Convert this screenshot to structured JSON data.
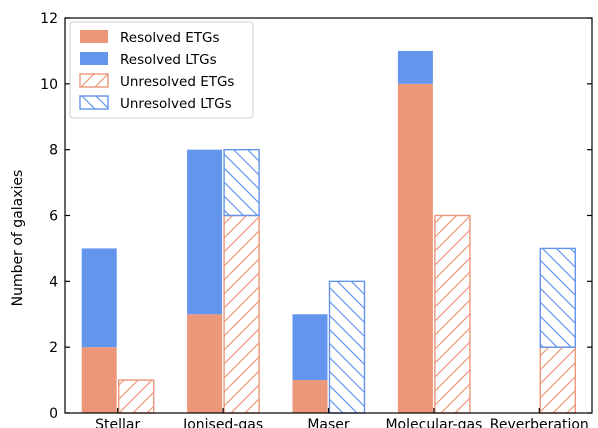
{
  "chart_data": {
    "type": "bar",
    "title": "",
    "xlabel": "",
    "ylabel": "Number of galaxies",
    "ylim": [
      0,
      12
    ],
    "yticks": [
      0,
      2,
      4,
      6,
      8,
      10,
      12
    ],
    "grid": false,
    "legend_position": "top-left",
    "categories": [
      "Stellar",
      "Ionised-gas",
      "Maser",
      "Molecular-gas",
      "Reverberation"
    ],
    "colors": {
      "etg": "#ec967a",
      "ltg": "#6495ed"
    },
    "groups": [
      {
        "name": "Resolved",
        "style": "solid",
        "stack": [
          {
            "name": "Resolved ETGs",
            "color_key": "etg",
            "values": [
              2,
              3,
              1,
              10,
              0
            ]
          },
          {
            "name": "Resolved LTGs",
            "color_key": "ltg",
            "values": [
              3,
              5,
              2,
              1,
              0
            ]
          }
        ]
      },
      {
        "name": "Unresolved",
        "style": "hatched",
        "stack": [
          {
            "name": "Unresolved ETGs",
            "color_key": "etg",
            "hatch": "forward",
            "values": [
              1,
              6,
              0,
              6,
              2
            ]
          },
          {
            "name": "Unresolved LTGs",
            "color_key": "ltg",
            "hatch": "back",
            "values": [
              0,
              2,
              4,
              0,
              3
            ]
          }
        ]
      }
    ],
    "legend": [
      {
        "label": "Resolved ETGs",
        "color_key": "etg",
        "style": "solid"
      },
      {
        "label": "Resolved LTGs",
        "color_key": "ltg",
        "style": "solid"
      },
      {
        "label": "Unresolved ETGs",
        "color_key": "etg",
        "style": "hatch-forward"
      },
      {
        "label": "Unresolved LTGs",
        "color_key": "ltg",
        "style": "hatch-back"
      }
    ]
  }
}
